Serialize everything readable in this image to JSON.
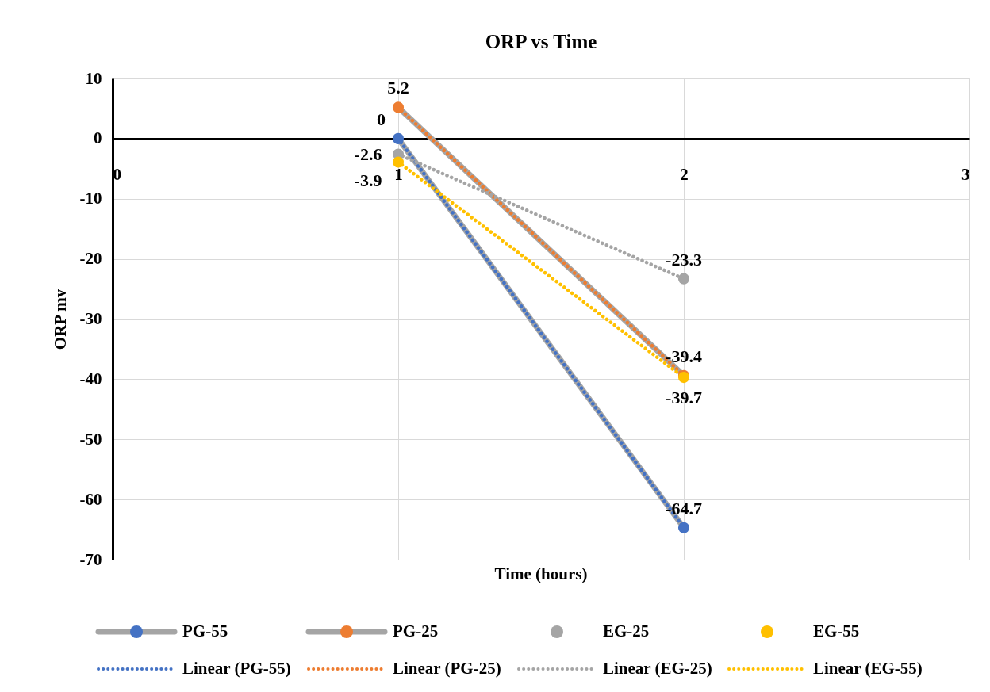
{
  "chart_data": {
    "type": "line",
    "title": "ORP vs Time",
    "xlabel": "Time (hours)",
    "ylabel": "ORP mv",
    "xlim": [
      0,
      3
    ],
    "xticks": [
      0,
      1,
      2,
      3
    ],
    "ylim": [
      -70,
      10
    ],
    "yticks": [
      -70,
      -60,
      -50,
      -40,
      -30,
      -20,
      -10,
      0,
      10
    ],
    "grid": true,
    "legend": "bottom",
    "x": [
      1,
      2
    ],
    "series": [
      {
        "name": "PG-55",
        "color": "#a5a5a5",
        "colors": [
          "#4472c4",
          "#4472c4"
        ],
        "marker": "circle",
        "values": [
          0,
          -64.7
        ],
        "value_labels": [
          "0",
          "-64.7"
        ]
      },
      {
        "name": "PG-25",
        "color": "#a5a5a5",
        "colors": [
          "#ed7d31",
          "#ed7d31"
        ],
        "marker": "circle",
        "values": [
          5.2,
          -39.4
        ],
        "value_labels": [
          "5.2",
          "-39.4"
        ]
      },
      {
        "name": "EG-25",
        "type": "scatter",
        "color": "#a5a5a5",
        "marker": "circle",
        "values": [
          -2.6,
          -23.3
        ],
        "value_labels": [
          "-2.6",
          "-23.3"
        ]
      },
      {
        "name": "EG-55",
        "type": "scatter",
        "color": "#ffc000",
        "marker": "circle",
        "values": [
          -3.9,
          -39.7
        ],
        "value_labels": [
          "-3.9",
          "-39.7"
        ]
      },
      {
        "name": "Linear (PG-55)",
        "color": "#4472c4",
        "line_style": "dotted",
        "values": [
          0,
          -64.7
        ]
      },
      {
        "name": "Linear (PG-25)",
        "color": "#ed7d31",
        "line_style": "dotted",
        "values": [
          5.2,
          -39.4
        ]
      },
      {
        "name": "Linear (EG-25)",
        "color": "#a5a5a5",
        "line_style": "dotted",
        "values": [
          -2.6,
          -23.3
        ]
      },
      {
        "name": "Linear (EG-55)",
        "color": "#ffc000",
        "line_style": "dotted",
        "values": [
          -3.9,
          -39.7
        ]
      }
    ]
  }
}
